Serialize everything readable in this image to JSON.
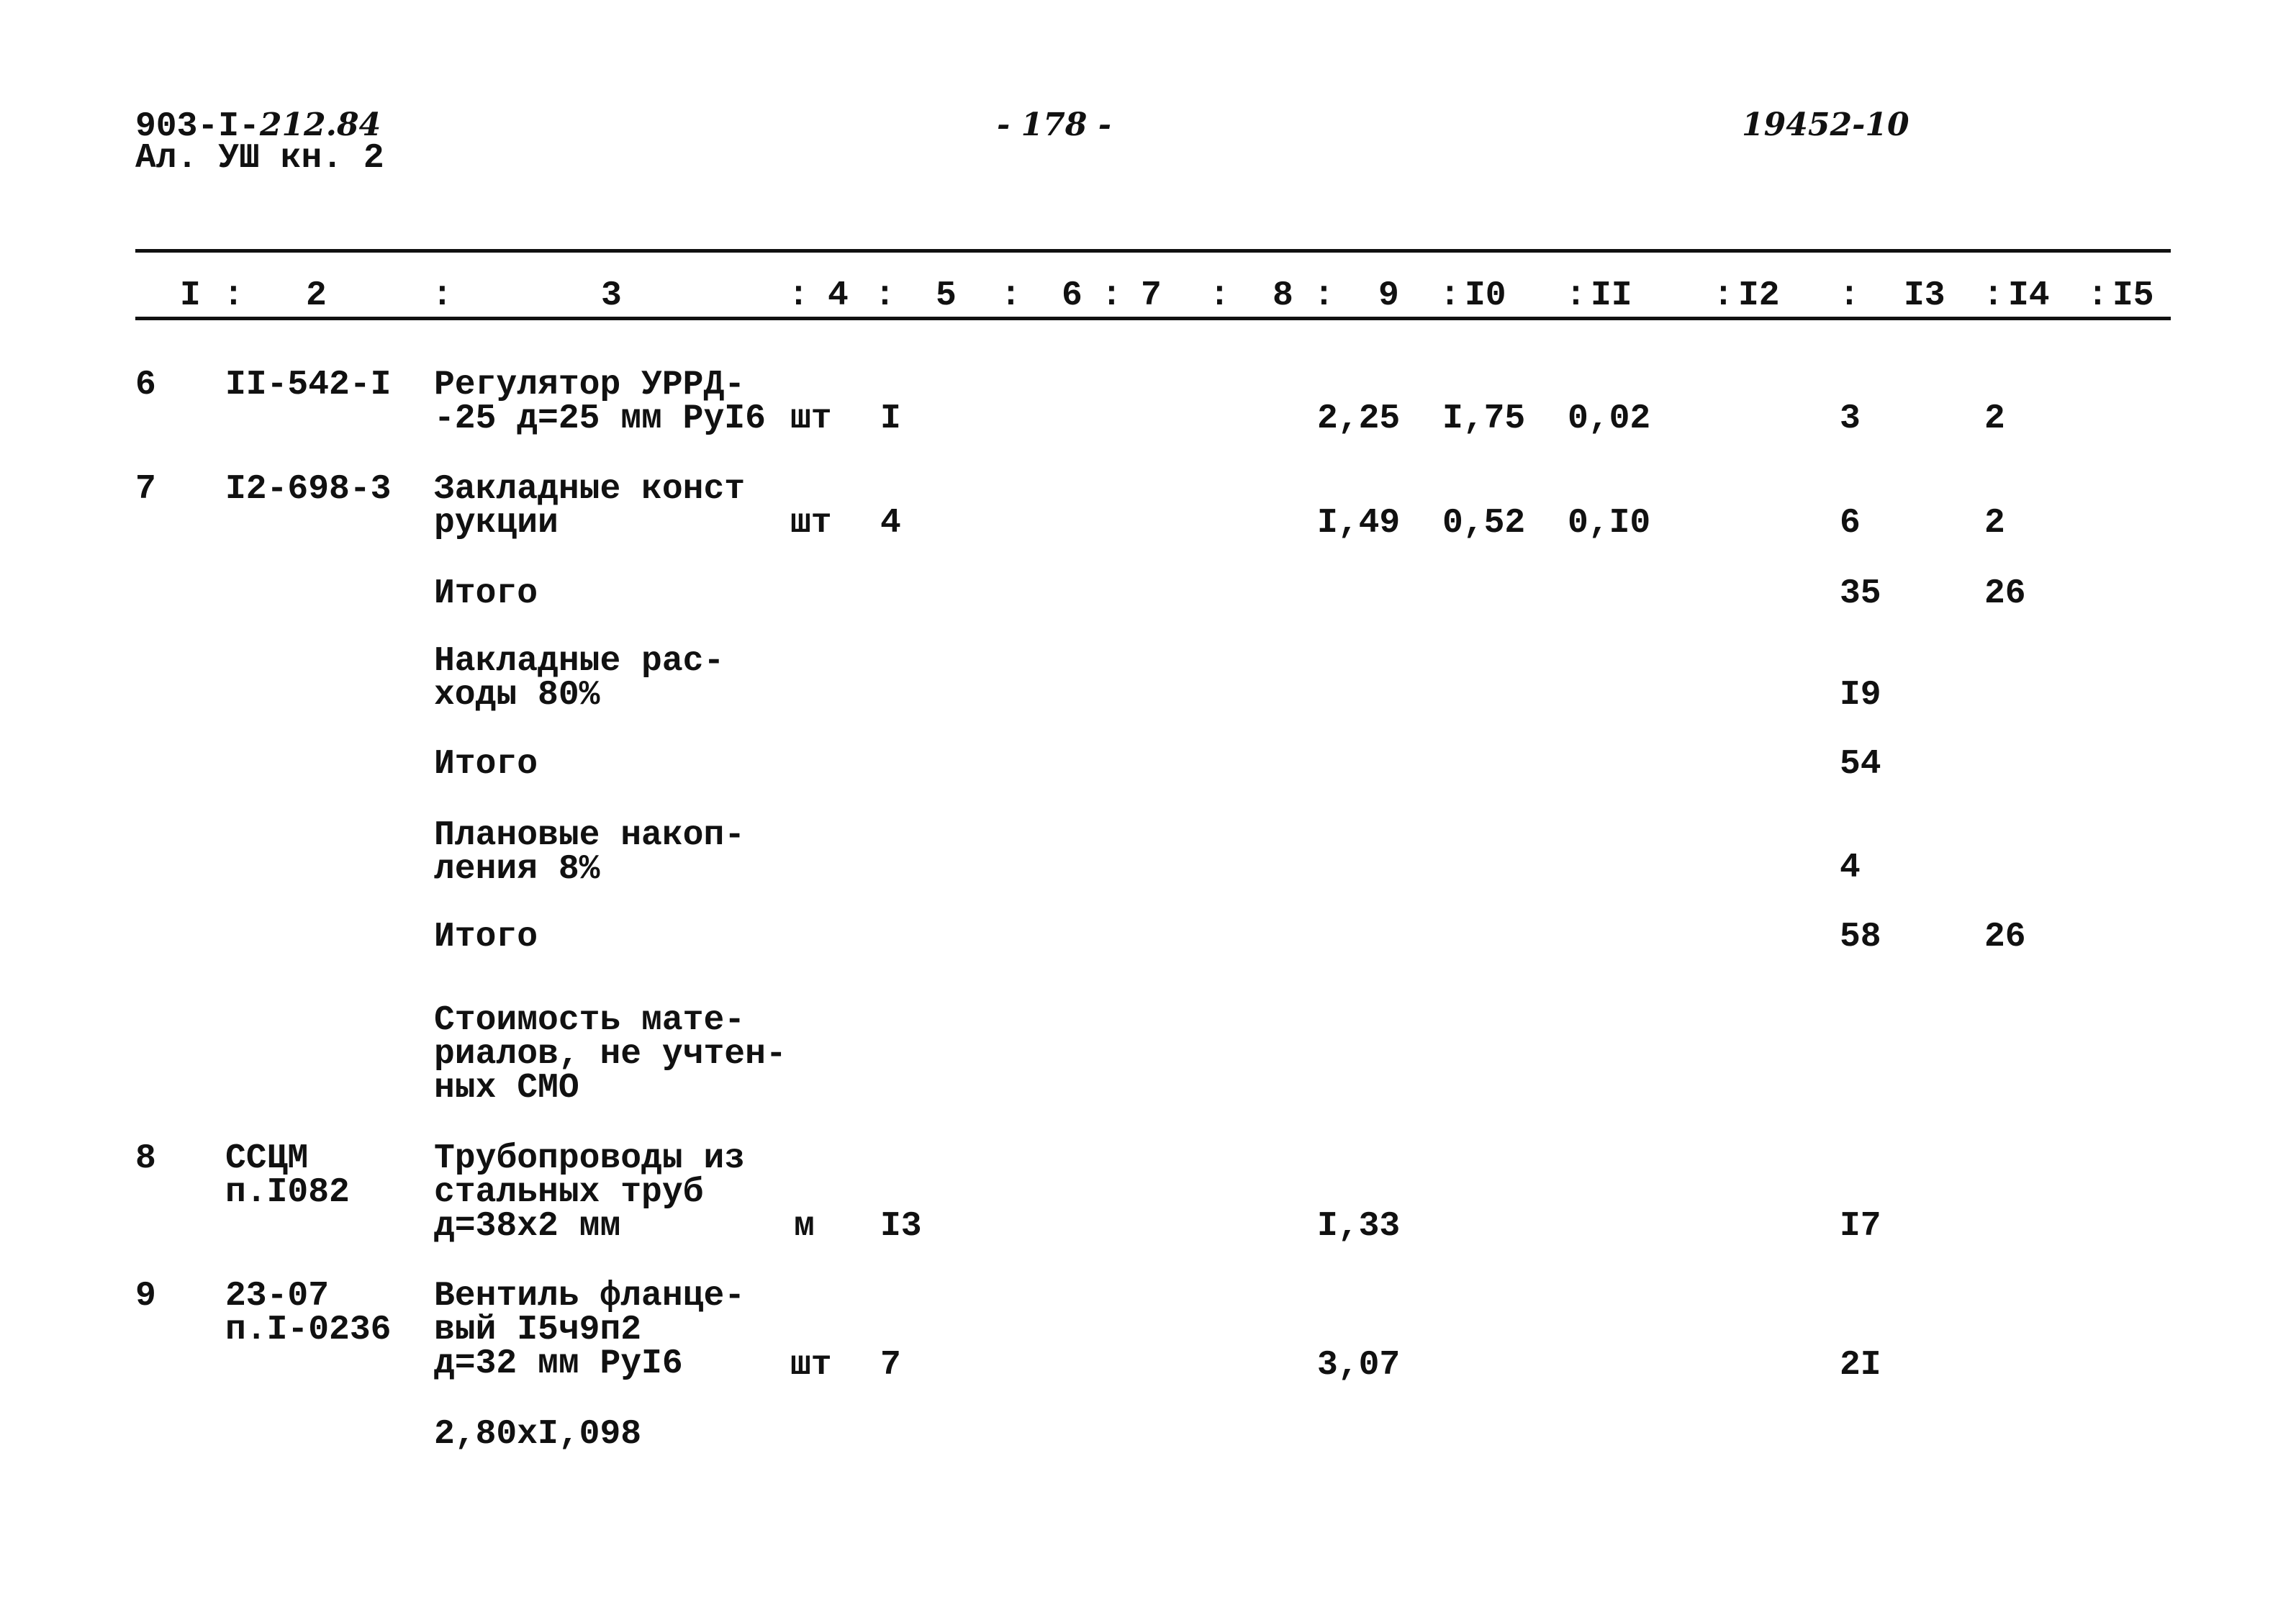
{
  "header": {
    "doc_code": "903-I-",
    "doc_code_handwritten": "212.84",
    "album": "Ал. УШ кн. 2",
    "page_number": "- 178 -",
    "inventory_number": "19452-10"
  },
  "columns": [
    "I",
    "2",
    "3",
    "4",
    "5",
    "6",
    "7",
    "8",
    "9",
    "I0",
    "II",
    "I2",
    "I3",
    "I4",
    "I5"
  ],
  "rows": [
    {
      "num": "6",
      "code": [
        "II-542-I"
      ],
      "desc": [
        "Регулятор УРРД-",
        "-25 д=25 мм РуI6"
      ],
      "unit": "шт",
      "qty": "I",
      "c9": "2,25",
      "c10": "I,75",
      "c11": "0,02",
      "c13": "3",
      "c14": "2"
    },
    {
      "num": "7",
      "code": [
        "I2-698-3"
      ],
      "desc": [
        "Закладные конст",
        "рукции"
      ],
      "unit": "шт",
      "qty": "4",
      "c9": "I,49",
      "c10": "0,52",
      "c11": "0,I0",
      "c13": "6",
      "c14": "2"
    },
    {
      "desc": [
        "Итого"
      ],
      "c13": "35",
      "c14": "26"
    },
    {
      "desc": [
        "Накладные рас-",
        "ходы 80%"
      ],
      "c13": "I9"
    },
    {
      "desc": [
        "Итого"
      ],
      "c13": "54"
    },
    {
      "desc": [
        "Плановые накоп-",
        "ления 8%"
      ],
      "c13": "4"
    },
    {
      "desc": [
        "Итого"
      ],
      "c13": "58",
      "c14": "26"
    },
    {
      "desc": [
        "Стоимость мате-",
        "риалов, не учтен-",
        "ных СМО"
      ]
    },
    {
      "num": "8",
      "code": [
        "ССЦМ",
        "п.I082"
      ],
      "desc": [
        "Трубопроводы из",
        "стальных труб",
        "д=38х2 мм"
      ],
      "unit": "м",
      "qty": "I3",
      "c9": "I,33",
      "c13": "I7"
    },
    {
      "num": "9",
      "code": [
        "23-07",
        "п.I-0236"
      ],
      "desc": [
        "Вентиль фланце-",
        "вый I5ч9п2",
        "д=32 мм РуI6"
      ],
      "unit": "шт",
      "qty": "7",
      "c9": "3,07",
      "c13": "2I"
    },
    {
      "desc": [
        "2,80хI,098"
      ]
    }
  ]
}
